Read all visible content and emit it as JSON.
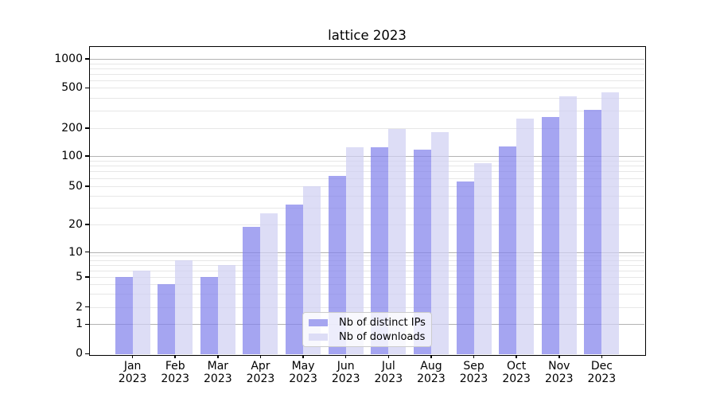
{
  "title": "lattice 2023",
  "chart_data": {
    "type": "bar",
    "title": "lattice 2023",
    "categories": [
      "Jan 2023",
      "Feb 2023",
      "Mar 2023",
      "Apr 2023",
      "May 2023",
      "Jun 2023",
      "Jul 2023",
      "Aug 2023",
      "Sep 2023",
      "Oct 2023",
      "Nov 2023",
      "Dec 2023"
    ],
    "series": [
      {
        "name": "Nb of distinct IPs",
        "legend_color": "#a5a5f0",
        "fill": "rgba(130,130,235,0.72)",
        "values": [
          5,
          4,
          5,
          19,
          32,
          63,
          125,
          118,
          56,
          127,
          260,
          305
        ]
      },
      {
        "name": "Nb of downloads",
        "legend_color": "#ddddf6",
        "fill": "rgba(208,208,243,0.72)",
        "values": [
          6,
          8,
          7,
          26,
          50,
          125,
          195,
          180,
          85,
          250,
          410,
          450
        ]
      }
    ],
    "yscale": "symlog",
    "yticks": [
      0,
      1,
      2,
      5,
      10,
      20,
      50,
      100,
      200,
      500,
      1000
    ],
    "ylim": [
      0,
      1300
    ],
    "xlabel": "",
    "ylabel": "",
    "grid": "horizontal",
    "legend_position": "lower center"
  },
  "colors": {
    "grid_major": "#b3b3b3",
    "grid_minor": "#e7e7e7",
    "axis": "#000000",
    "background": "#ffffff"
  }
}
